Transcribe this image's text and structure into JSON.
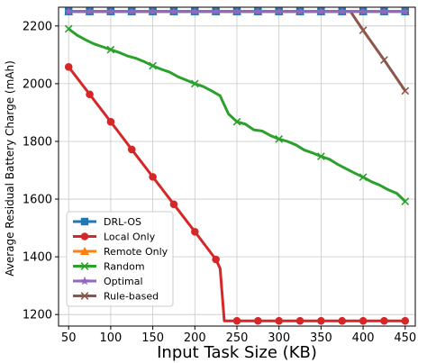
{
  "chart_data": {
    "type": "line",
    "xlabel": "Input Task Size (KB)",
    "ylabel": "Average Residual Battery Charge (mAh)",
    "xlim": [
      38,
      462
    ],
    "ylim": [
      1160,
      2265
    ],
    "x_ticks": [
      50,
      100,
      150,
      200,
      250,
      300,
      350,
      400,
      450
    ],
    "y_ticks": [
      1200,
      1400,
      1600,
      1800,
      2000,
      2200
    ],
    "grid": true,
    "legend_position": "lower-left",
    "series": [
      {
        "name": "DRL-OS",
        "color": "#1f77b4",
        "marker": "square",
        "x": [
          50,
          75,
          100,
          125,
          150,
          175,
          200,
          225,
          250,
          275,
          300,
          325,
          350,
          375,
          400,
          425,
          450
        ],
        "y": [
          2250,
          2250,
          2250,
          2250,
          2250,
          2250,
          2250,
          2250,
          2250,
          2250,
          2250,
          2250,
          2250,
          2250,
          2250,
          2250,
          2250
        ]
      },
      {
        "name": "Local Only",
        "color": "#d62728",
        "marker": "circle",
        "x": [
          50,
          75,
          100,
          125,
          150,
          175,
          200,
          225,
          230,
          235,
          250,
          275,
          300,
          325,
          350,
          375,
          400,
          425,
          450
        ],
        "y": [
          2058,
          1963,
          1868,
          1772,
          1677,
          1582,
          1487,
          1391,
          1360,
          1178,
          1178,
          1178,
          1178,
          1178,
          1178,
          1178,
          1178,
          1178,
          1178
        ],
        "marker_x": [
          50,
          75,
          100,
          125,
          150,
          175,
          200,
          225,
          250,
          275,
          300,
          325,
          350,
          375,
          400,
          425,
          450
        ]
      },
      {
        "name": "Remote Only",
        "color": "#ff7f0e",
        "marker": "triangle",
        "x": [
          50,
          75,
          100,
          125,
          150,
          175,
          200,
          225,
          250,
          275,
          300,
          325,
          350,
          375,
          400,
          425,
          450
        ],
        "y": [
          2250,
          2250,
          2250,
          2250,
          2250,
          2250,
          2250,
          2250,
          2250,
          2250,
          2250,
          2250,
          2250,
          2250,
          2250,
          2250,
          2250
        ]
      },
      {
        "name": "Random",
        "color": "#2ca02c",
        "marker": "x",
        "x": [
          50,
          60,
          70,
          80,
          90,
          100,
          110,
          120,
          130,
          140,
          150,
          160,
          170,
          180,
          190,
          200,
          210,
          220,
          230,
          240,
          250,
          260,
          270,
          280,
          290,
          300,
          310,
          320,
          330,
          340,
          350,
          360,
          370,
          380,
          390,
          400,
          410,
          420,
          430,
          440,
          450
        ],
        "y": [
          2190,
          2168,
          2152,
          2138,
          2128,
          2118,
          2108,
          2096,
          2088,
          2076,
          2062,
          2050,
          2040,
          2024,
          2012,
          2000,
          1990,
          1975,
          1958,
          1895,
          1868,
          1860,
          1840,
          1836,
          1820,
          1808,
          1800,
          1788,
          1770,
          1760,
          1748,
          1738,
          1720,
          1705,
          1690,
          1676,
          1660,
          1648,
          1632,
          1620,
          1592
        ],
        "marker_x": [
          50,
          75,
          100,
          125,
          150,
          175,
          200,
          225,
          250,
          275,
          300,
          325,
          350,
          375,
          400,
          425,
          450
        ]
      },
      {
        "name": "Optimal",
        "color": "#9467bd",
        "marker": "star",
        "x": [
          50,
          75,
          100,
          125,
          150,
          175,
          200,
          225,
          250,
          275,
          300,
          325,
          350,
          375,
          400,
          425,
          450
        ],
        "y": [
          2250,
          2250,
          2250,
          2250,
          2250,
          2250,
          2250,
          2250,
          2250,
          2250,
          2250,
          2250,
          2250,
          2250,
          2250,
          2250,
          2250
        ]
      },
      {
        "name": "Rule-based",
        "color": "#8c564b",
        "marker": "x",
        "x": [
          50,
          75,
          100,
          125,
          150,
          175,
          200,
          225,
          250,
          275,
          300,
          325,
          350,
          375,
          385,
          400,
          425,
          450
        ],
        "y": [
          2250,
          2250,
          2250,
          2250,
          2250,
          2250,
          2250,
          2250,
          2250,
          2250,
          2250,
          2250,
          2250,
          2250,
          2250,
          2185,
          2082,
          1975
        ],
        "marker_x": [
          50,
          75,
          100,
          125,
          150,
          175,
          200,
          225,
          250,
          275,
          300,
          325,
          350,
          375,
          400,
          425,
          450
        ]
      }
    ],
    "draw_order": [
      "Local Only",
      "Random",
      "Rule-based",
      "Remote Only",
      "DRL-OS",
      "Optimal"
    ]
  }
}
